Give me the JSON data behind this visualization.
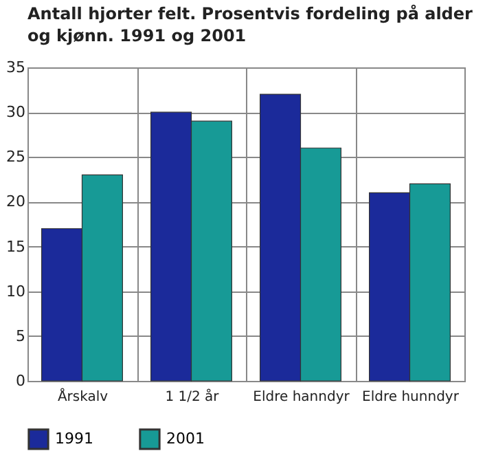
{
  "chart_data": {
    "type": "bar",
    "title": "Antall hjorter felt. Prosentvis fordeling på alder og kjønn. 1991 og 2001",
    "categories": [
      "Årskalv",
      "1 1/2 år",
      "Eldre hanndyr",
      "Eldre hunndyr"
    ],
    "series": [
      {
        "name": "1991",
        "color": "#1b2a9a",
        "values": [
          17,
          30,
          32,
          21
        ]
      },
      {
        "name": "2001",
        "color": "#179a96",
        "values": [
          23,
          29,
          26,
          22
        ]
      }
    ],
    "ylim": [
      0,
      35
    ],
    "yticks": [
      0,
      5,
      10,
      15,
      20,
      25,
      30,
      35
    ],
    "grid": true,
    "legend": "bottom"
  }
}
